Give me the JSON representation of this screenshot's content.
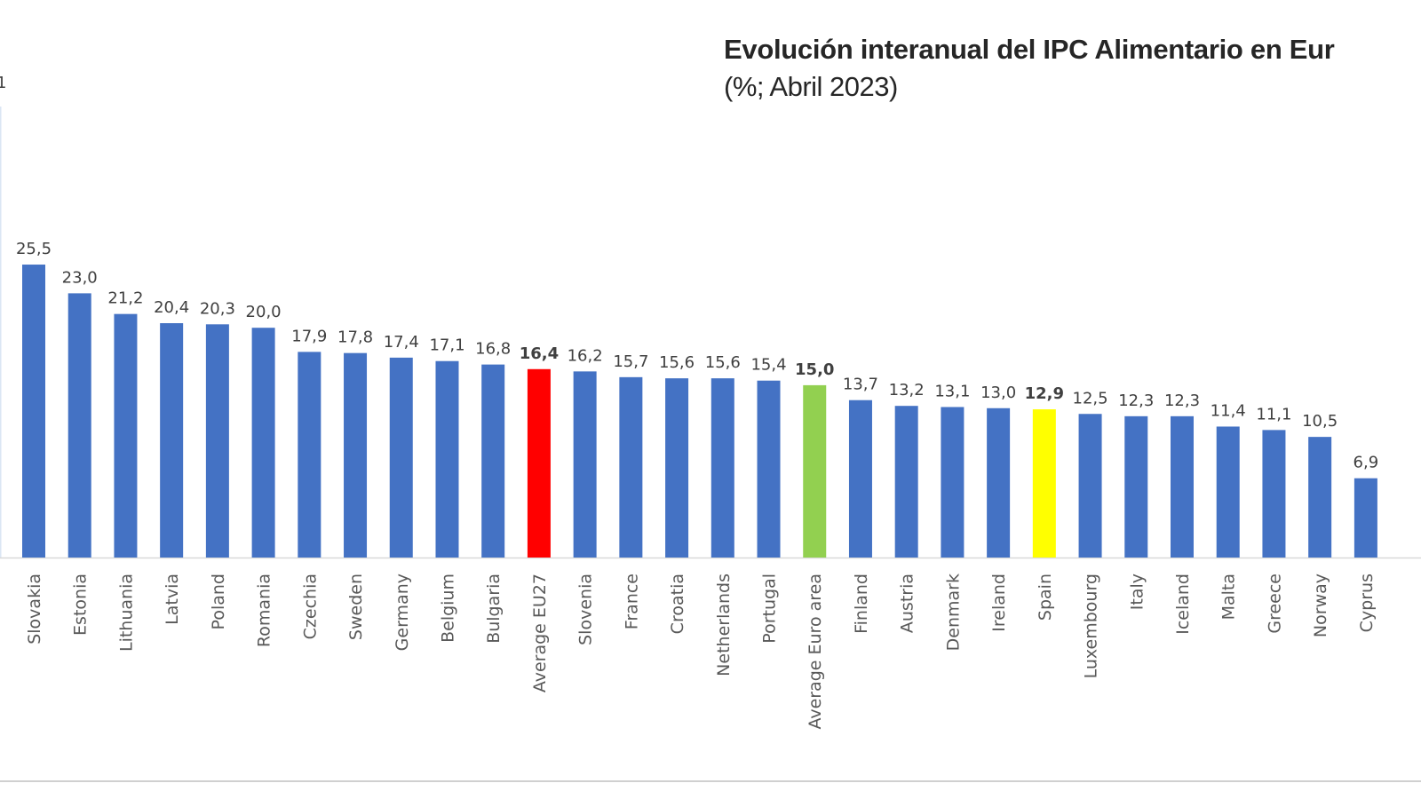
{
  "chart_data": {
    "type": "bar",
    "title": "Evolución interanual del IPC Alimentario en Eur",
    "subtitle": "(%; Abril 2023)",
    "left_fragment_label": "1",
    "xlabel": "",
    "ylabel": "",
    "ylim": [
      0,
      48
    ],
    "grid": false,
    "categories": [
      "Slovakia",
      "Estonia",
      "Lithuania",
      "Latvia",
      "Poland",
      "Romania",
      "Czechia",
      "Sweden",
      "Germany",
      "Belgium",
      "Bulgaria",
      "Average EU27",
      "Slovenia",
      "France",
      "Croatia",
      "Netherlands",
      "Portugal",
      "Average Euro area",
      "Finland",
      "Austria",
      "Denmark",
      "Ireland",
      "Spain",
      "Luxembourg",
      "Italy",
      "Iceland",
      "Malta",
      "Greece",
      "Norway",
      "Cyprus"
    ],
    "values": [
      25.5,
      23.0,
      21.2,
      20.4,
      20.3,
      20.0,
      17.9,
      17.8,
      17.4,
      17.1,
      16.8,
      16.4,
      16.2,
      15.7,
      15.6,
      15.6,
      15.4,
      15.0,
      13.7,
      13.2,
      13.1,
      13.0,
      12.9,
      12.5,
      12.3,
      12.3,
      11.4,
      11.1,
      10.5,
      6.9
    ],
    "value_labels": [
      "25,5",
      "23,0",
      "21,2",
      "20,4",
      "20,3",
      "20,0",
      "17,9",
      "17,8",
      "17,4",
      "17,1",
      "16,8",
      "16,4",
      "16,2",
      "15,7",
      "15,6",
      "15,6",
      "15,4",
      "15,0",
      "13,7",
      "13,2",
      "13,1",
      "13,0",
      "12,9",
      "12,5",
      "12,3",
      "12,3",
      "11,4",
      "11,1",
      "10,5",
      "6,9"
    ],
    "highlight": {
      "Average EU27": "#ff0000",
      "Average Euro area": "#92d050",
      "Spain": "#ffff00"
    },
    "bold_labels": [
      "Average EU27",
      "Average Euro area",
      "Spain"
    ],
    "default_color": "#4472c4"
  }
}
